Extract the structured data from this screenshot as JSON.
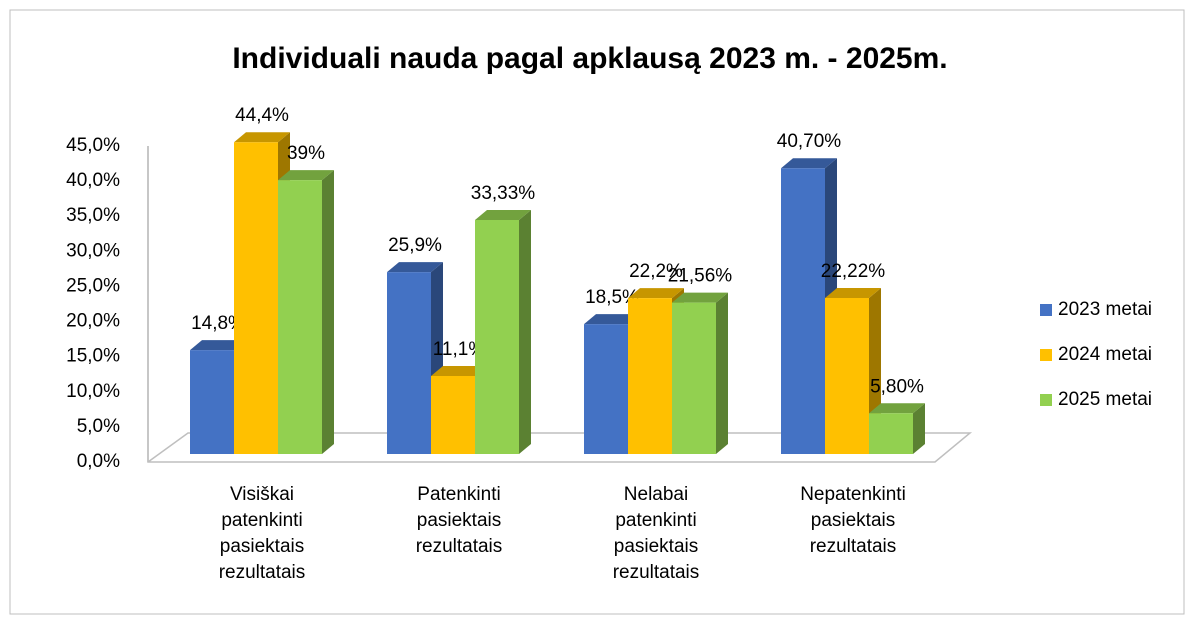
{
  "chart_data": {
    "type": "bar3d",
    "title": "Individuali nauda pagal apklausą 2023 m. - 2025m.",
    "categories": [
      "Visiškai patenkinti pasiektais rezultatais",
      "Patenkinti pasiektais rezultatais",
      "Nelabai patenkinti pasiektais rezultatais",
      "Nepatenkinti pasiektais rezultatais"
    ],
    "series": [
      {
        "name": "2023 metai",
        "color": "#4472c4",
        "values": [
          14.8,
          25.9,
          18.5,
          40.7
        ],
        "value_labels": [
          "14,8%",
          "25,9%",
          "18,5%",
          "40,70%"
        ]
      },
      {
        "name": "2024 metai",
        "color": "#ffc000",
        "values": [
          44.4,
          11.1,
          22.2,
          22.22
        ],
        "value_labels": [
          "44,4%",
          "11,1%",
          "22,2%",
          "22,22%"
        ]
      },
      {
        "name": "2025 metai",
        "color": "#92d050",
        "values": [
          39,
          33.33,
          21.56,
          5.8
        ],
        "value_labels": [
          "39%",
          "33,33%",
          "21,56%",
          "5,80%"
        ]
      }
    ],
    "ylim": [
      0,
      45
    ],
    "yticks": [
      {
        "value": 0,
        "label": "0,0%"
      },
      {
        "value": 5,
        "label": "5,0%"
      },
      {
        "value": 10,
        "label": "10,0%"
      },
      {
        "value": 15,
        "label": "15,0%"
      },
      {
        "value": 20,
        "label": "20,0%"
      },
      {
        "value": 25,
        "label": "25,0%"
      },
      {
        "value": 30,
        "label": "30,0%"
      },
      {
        "value": 35,
        "label": "35,0%"
      },
      {
        "value": 40,
        "label": "40,0%"
      },
      {
        "value": 45,
        "label": "45,0%"
      }
    ],
    "legend": "right"
  }
}
